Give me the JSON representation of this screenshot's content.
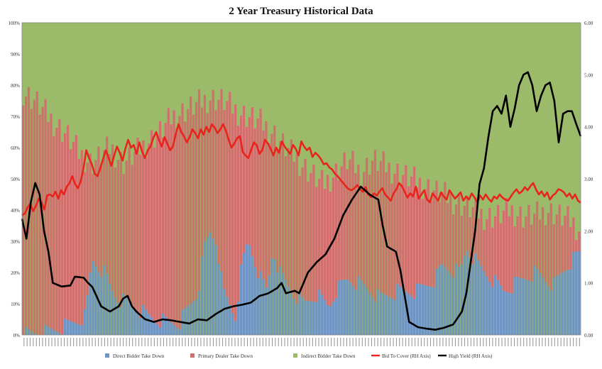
{
  "chart_data": {
    "type": "bar",
    "title": "2 Year Treasury  Historical Data",
    "left_axis": {
      "ticks": [
        "0%",
        "10%",
        "20%",
        "30%",
        "40%",
        "50%",
        "60%",
        "70%",
        "80%",
        "90%",
        "100%"
      ],
      "ylim": [
        0,
        100
      ]
    },
    "right_axis": {
      "ticks": [
        "0.00",
        "1.00",
        "2.00",
        "3.00",
        "4.00",
        "5.00",
        "6.00"
      ],
      "ylim": [
        0,
        6
      ]
    },
    "x_tick_count": 180,
    "stacked_series": [
      {
        "name": "Direct Bidder Take Down",
        "color": "#6f95c4",
        "anchors": [
          [
            0,
            0
          ],
          [
            8,
            1
          ],
          [
            14,
            3
          ],
          [
            20,
            6
          ],
          [
            22,
            24
          ],
          [
            26,
            20
          ],
          [
            28,
            15
          ],
          [
            30,
            12
          ],
          [
            36,
            9
          ],
          [
            40,
            6
          ],
          [
            46,
            4
          ],
          [
            50,
            4
          ],
          [
            56,
            14
          ],
          [
            58,
            28
          ],
          [
            60,
            33
          ],
          [
            62,
            30
          ],
          [
            64,
            14
          ],
          [
            68,
            6
          ],
          [
            70,
            22
          ],
          [
            72,
            30
          ],
          [
            74,
            24
          ],
          [
            76,
            18
          ],
          [
            78,
            14
          ],
          [
            80,
            28
          ],
          [
            82,
            20
          ],
          [
            86,
            14
          ],
          [
            90,
            10
          ],
          [
            94,
            13
          ],
          [
            98,
            9
          ],
          [
            100,
            14
          ],
          [
            104,
            18
          ],
          [
            110,
            15
          ],
          [
            114,
            12
          ],
          [
            120,
            14
          ],
          [
            126,
            14
          ],
          [
            132,
            18
          ],
          [
            134,
            22
          ],
          [
            140,
            20
          ],
          [
            142,
            28
          ],
          [
            146,
            22
          ],
          [
            150,
            18
          ],
          [
            154,
            14
          ],
          [
            160,
            18
          ],
          [
            164,
            20
          ],
          [
            170,
            16
          ],
          [
            174,
            22
          ],
          [
            178,
            26
          ]
        ]
      },
      {
        "name": "Primary Dealer Take Down",
        "color": "#d16f6f",
        "top_anchors": [
          [
            0,
            78
          ],
          [
            4,
            75
          ],
          [
            8,
            70
          ],
          [
            14,
            64
          ],
          [
            18,
            58
          ],
          [
            22,
            55
          ],
          [
            28,
            60
          ],
          [
            32,
            55
          ],
          [
            36,
            58
          ],
          [
            40,
            62
          ],
          [
            44,
            65
          ],
          [
            48,
            70
          ],
          [
            52,
            72
          ],
          [
            56,
            74
          ],
          [
            60,
            76
          ],
          [
            64,
            75
          ],
          [
            68,
            72
          ],
          [
            72,
            70
          ],
          [
            76,
            68
          ],
          [
            80,
            65
          ],
          [
            84,
            60
          ],
          [
            88,
            56
          ],
          [
            92,
            52
          ],
          [
            96,
            48
          ],
          [
            100,
            52
          ],
          [
            104,
            56
          ],
          [
            108,
            52
          ],
          [
            112,
            56
          ],
          [
            116,
            54
          ],
          [
            120,
            52
          ],
          [
            124,
            50
          ],
          [
            128,
            48
          ],
          [
            132,
            46
          ],
          [
            136,
            44
          ],
          [
            140,
            42
          ],
          [
            144,
            40
          ],
          [
            148,
            38
          ],
          [
            152,
            38
          ],
          [
            156,
            40
          ],
          [
            160,
            38
          ],
          [
            164,
            38
          ],
          [
            168,
            40
          ],
          [
            172,
            38
          ],
          [
            176,
            36
          ],
          [
            178,
            34
          ]
        ]
      },
      {
        "name": "Indirect Bidder Take Down",
        "color": "#9cbb6a"
      }
    ],
    "line_series": [
      {
        "name": "Bid To Cover (RH Axis)",
        "color": "#e8241c",
        "axis": "right",
        "values": [
          2.3,
          2.33,
          2.45,
          2.52,
          2.38,
          2.48,
          2.62,
          2.55,
          2.41,
          2.68,
          2.7,
          2.66,
          2.75,
          2.62,
          2.78,
          2.7,
          2.85,
          2.92,
          3.05,
          2.9,
          2.82,
          2.95,
          3.2,
          3.55,
          3.4,
          3.28,
          3.1,
          3.05,
          3.2,
          3.38,
          3.55,
          3.4,
          3.25,
          3.45,
          3.62,
          3.5,
          3.35,
          3.58,
          3.75,
          3.6,
          3.65,
          3.48,
          3.7,
          3.52,
          3.4,
          3.55,
          3.62,
          3.78,
          3.9,
          3.75,
          3.62,
          3.8,
          3.68,
          3.55,
          3.62,
          3.85,
          4.05,
          3.9,
          3.82,
          3.7,
          3.8,
          3.95,
          3.88,
          3.78,
          3.95,
          3.85,
          4.0,
          3.9,
          4.05,
          3.98,
          3.88,
          3.95,
          4.05,
          3.92,
          3.75,
          3.6,
          3.68,
          3.78,
          3.82,
          3.52,
          3.45,
          3.4,
          3.55,
          3.7,
          3.65,
          3.48,
          3.55,
          3.75,
          3.68,
          3.58,
          3.45,
          3.6,
          3.5,
          3.72,
          3.62,
          3.55,
          3.48,
          3.65,
          3.58,
          3.45,
          3.72,
          3.62,
          3.55,
          3.6,
          3.42,
          3.5,
          3.45,
          3.38,
          3.28,
          3.3,
          3.22,
          3.18,
          3.1,
          3.05,
          2.98,
          2.92,
          2.85,
          2.8,
          2.78,
          2.82,
          2.88,
          2.8,
          2.75,
          2.84,
          2.7,
          2.65,
          2.72,
          2.68,
          2.76,
          2.82,
          2.7,
          2.64,
          2.58,
          2.72,
          2.8,
          2.92,
          2.86,
          2.75,
          2.64,
          2.72,
          2.66,
          2.85,
          2.62,
          2.7,
          2.78,
          2.6,
          2.55,
          2.72,
          2.65,
          2.58,
          2.74,
          2.66,
          2.6,
          2.78,
          2.7,
          2.62,
          2.68,
          2.74,
          2.58,
          2.66,
          2.6,
          2.72,
          2.64,
          2.55,
          2.68,
          2.6,
          2.7,
          2.62,
          2.56,
          2.66,
          2.62,
          2.7,
          2.64,
          2.6,
          2.58,
          2.66,
          2.74,
          2.8,
          2.72,
          2.76,
          2.84,
          2.78,
          2.86,
          2.92,
          2.8,
          2.7,
          2.76,
          2.66,
          2.74,
          2.6,
          2.68,
          2.72,
          2.8,
          2.78,
          2.74,
          2.66,
          2.72,
          2.62,
          2.7,
          2.58,
          2.54
        ]
      },
      {
        "name": "High Yield (RH Axis)",
        "color": "#000000",
        "axis": "right",
        "anchors": [
          [
            0,
            2.23
          ],
          [
            2,
            1.85
          ],
          [
            4,
            2.55
          ],
          [
            6,
            2.92
          ],
          [
            8,
            2.7
          ],
          [
            10,
            2.0
          ],
          [
            12,
            1.6
          ],
          [
            14,
            1.0
          ],
          [
            18,
            0.93
          ],
          [
            22,
            0.95
          ],
          [
            24,
            1.12
          ],
          [
            28,
            1.1
          ],
          [
            30,
            1.0
          ],
          [
            32,
            0.92
          ],
          [
            36,
            0.55
          ],
          [
            40,
            0.45
          ],
          [
            44,
            0.55
          ],
          [
            46,
            0.7
          ],
          [
            48,
            0.75
          ],
          [
            50,
            0.55
          ],
          [
            52,
            0.45
          ],
          [
            56,
            0.3
          ],
          [
            60,
            0.25
          ],
          [
            64,
            0.3
          ],
          [
            68,
            0.28
          ],
          [
            72,
            0.25
          ],
          [
            76,
            0.22
          ],
          [
            80,
            0.3
          ],
          [
            84,
            0.28
          ],
          [
            88,
            0.4
          ],
          [
            92,
            0.5
          ],
          [
            96,
            0.55
          ],
          [
            100,
            0.58
          ],
          [
            104,
            0.62
          ],
          [
            108,
            0.75
          ],
          [
            112,
            0.8
          ],
          [
            116,
            0.9
          ],
          [
            118,
            1.0
          ],
          [
            120,
            0.8
          ],
          [
            124,
            0.85
          ],
          [
            126,
            0.8
          ],
          [
            130,
            1.2
          ],
          [
            134,
            1.4
          ],
          [
            138,
            1.55
          ],
          [
            142,
            1.85
          ],
          [
            146,
            2.3
          ],
          [
            150,
            2.6
          ],
          [
            154,
            2.85
          ],
          [
            158,
            2.7
          ],
          [
            162,
            2.6
          ],
          [
            164,
            2.1
          ],
          [
            166,
            1.7
          ],
          [
            170,
            1.6
          ],
          [
            172,
            1.25
          ],
          [
            176,
            0.25
          ],
          [
            180,
            0.15
          ],
          [
            184,
            0.12
          ],
          [
            188,
            0.1
          ],
          [
            192,
            0.14
          ],
          [
            196,
            0.2
          ],
          [
            200,
            0.45
          ],
          [
            202,
            0.8
          ],
          [
            204,
            1.4
          ],
          [
            206,
            2.0
          ],
          [
            208,
            2.9
          ],
          [
            210,
            3.2
          ],
          [
            212,
            3.8
          ],
          [
            214,
            4.3
          ],
          [
            216,
            4.4
          ],
          [
            218,
            4.25
          ],
          [
            220,
            4.6
          ],
          [
            222,
            4.0
          ],
          [
            224,
            4.35
          ],
          [
            226,
            4.8
          ],
          [
            228,
            5.0
          ],
          [
            230,
            5.05
          ],
          [
            232,
            4.8
          ],
          [
            234,
            4.3
          ],
          [
            236,
            4.6
          ],
          [
            238,
            4.8
          ],
          [
            240,
            4.85
          ],
          [
            242,
            4.5
          ],
          [
            244,
            3.7
          ],
          [
            246,
            4.25
          ],
          [
            248,
            4.3
          ],
          [
            250,
            4.3
          ],
          [
            252,
            4.05
          ],
          [
            254,
            3.82
          ]
        ]
      }
    ],
    "legend": {
      "placement": "bottom",
      "items": [
        {
          "label": "Direct Bidder Take Down",
          "kind": "bar",
          "color": "#6f95c4"
        },
        {
          "label": "Primary Dealer Take Down",
          "kind": "bar",
          "color": "#d16f6f"
        },
        {
          "label": "Indirect Bidder Take Down",
          "kind": "bar",
          "color": "#9cbb6a"
        },
        {
          "label": "Bid To Cover (RH Axis)",
          "kind": "line",
          "color": "#e8241c"
        },
        {
          "label": "High Yield (RH Axis)",
          "kind": "line",
          "color": "#000000"
        }
      ]
    }
  }
}
